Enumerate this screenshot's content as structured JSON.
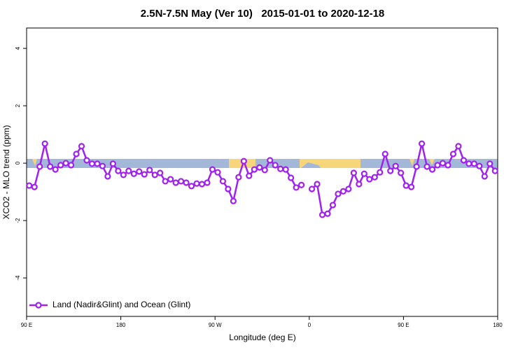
{
  "chart_data": {
    "type": "line",
    "title": "2.5N-7.5N May (Ver 10)   2015-01-01 to 2020-12-18",
    "x_label": "Longitude (deg E)",
    "y_label": "XCO2 - MLO trend (ppm)",
    "xlim": [
      90,
      540
    ],
    "xticks": [
      {
        "value": 90,
        "label": "90 E"
      },
      180,
      {
        "value": 270,
        "label": "90 W"
      },
      {
        "value": 360,
        "label": "0"
      },
      {
        "value": 450,
        "label": "90 E"
      },
      {
        "value": 540,
        "label": "180"
      }
    ],
    "ylim": [
      -5.34,
      4.71
    ],
    "yticks": [
      -4,
      -2,
      0,
      2,
      4
    ],
    "legend_position": "bottomleft",
    "x": [
      92.5,
      97.5,
      102.5,
      107.5,
      112.5,
      117.5,
      122.5,
      127.5,
      132.5,
      137.5,
      142.5,
      147.5,
      152.5,
      157.5,
      162.5,
      167.5,
      172.5,
      177.5,
      182.5,
      187.5,
      192.5,
      197.5,
      202.5,
      207.5,
      212.5,
      217.5,
      222.5,
      227.5,
      232.5,
      237.5,
      242.5,
      247.5,
      252.5,
      257.5,
      262.5,
      267.5,
      272.5,
      277.5,
      282.5,
      287.5,
      292.5,
      297.5,
      302.5,
      307.5,
      312.5,
      317.5,
      322.5,
      327.5,
      332.5,
      337.5,
      342.5,
      347.5,
      352.5,
      357.5,
      362.5,
      367.5,
      372.5,
      377.5,
      382.5,
      387.5,
      392.5,
      397.5,
      402.5,
      407.5,
      412.5,
      417.5,
      422.5,
      427.5,
      432.5,
      437.5,
      442.5,
      447.5,
      452.5,
      457.5,
      462.5,
      467.5,
      472.5,
      477.5,
      482.5,
      487.5,
      492.5,
      497.5,
      502.5,
      507.5,
      512.5,
      517.5,
      522.5,
      527.5,
      532.5,
      537.5
    ],
    "series": [
      {
        "name": "Land (Nadir&Glint) and Ocean (Glint)",
        "color": "#a020f0",
        "values": [
          -0.78,
          -0.83,
          -0.12,
          0.68,
          -0.12,
          -0.22,
          -0.07,
          0.0,
          -0.07,
          0.32,
          0.59,
          0.1,
          -0.02,
          -0.02,
          -0.1,
          -0.46,
          -0.02,
          -0.27,
          -0.41,
          -0.27,
          -0.37,
          -0.29,
          -0.39,
          -0.24,
          -0.41,
          -0.34,
          -0.63,
          -0.56,
          -0.68,
          -0.63,
          -0.68,
          -0.8,
          -0.71,
          -0.73,
          -0.68,
          -0.22,
          -0.32,
          -0.63,
          -0.9,
          -1.32,
          -0.49,
          0.07,
          -0.44,
          -0.22,
          -0.15,
          -0.24,
          0.1,
          -0.07,
          -0.2,
          -0.22,
          -0.51,
          -0.85,
          -0.76,
          null,
          -0.9,
          -0.73,
          -1.8,
          -1.76,
          -1.46,
          -1.07,
          -0.98,
          -0.9,
          -0.34,
          -0.73,
          -0.37,
          -0.56,
          -0.49,
          -0.32,
          0.32,
          -0.27,
          -0.1,
          -0.34,
          -0.78,
          -0.83,
          -0.12,
          0.68,
          -0.12,
          -0.22,
          -0.07,
          0.0,
          -0.07,
          0.32,
          0.59,
          0.1,
          -0.02,
          -0.02,
          -0.1,
          -0.46,
          -0.02,
          -0.27
        ]
      }
    ]
  }
}
